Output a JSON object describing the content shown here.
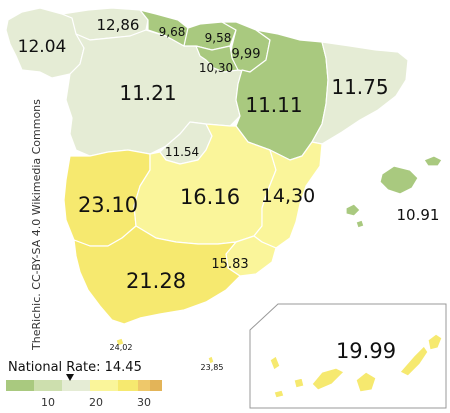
{
  "colors": {
    "cat_very_low": "#a9c97f",
    "cat_low": "#cddfae",
    "cat_mid_low": "#e5ecd5",
    "cat_mid": "#faf59a",
    "cat_high": "#f6e96f",
    "cat_very_high": "#eec86a",
    "highest": "#e3b458"
  },
  "credit": "TheRichic. CC-BY-SA 4.0 Wikimedia Commons",
  "legend": {
    "title": "National Rate: 14.45",
    "ticks": [
      "10",
      "20",
      "30"
    ],
    "marker_value": 14.45
  },
  "regions": [
    {
      "name": "Galicia",
      "label": "12.04",
      "color": "cat_mid_low"
    },
    {
      "name": "Asturias",
      "label": "12,86",
      "color": "cat_mid_low"
    },
    {
      "name": "Cantabria",
      "label": "9,68",
      "color": "cat_very_low"
    },
    {
      "name": "Pais Vasco",
      "label": "9,58",
      "color": "cat_very_low"
    },
    {
      "name": "Navarra",
      "label": "9,99",
      "color": "cat_very_low"
    },
    {
      "name": "La Rioja",
      "label": "10,30",
      "color": "cat_very_low"
    },
    {
      "name": "Castilla y Leon",
      "label": "11.21",
      "color": "cat_mid_low"
    },
    {
      "name": "Aragon",
      "label": "11.11",
      "color": "cat_very_low"
    },
    {
      "name": "Cataluna",
      "label": "11.75",
      "color": "cat_mid_low"
    },
    {
      "name": "Madrid",
      "label": "11.54",
      "color": "cat_mid_low"
    },
    {
      "name": "Extremadura",
      "label": "23.10",
      "color": "cat_high"
    },
    {
      "name": "Castilla-La Mancha",
      "label": "16.16",
      "color": "cat_mid"
    },
    {
      "name": "Valencia",
      "label": "14,30",
      "color": "cat_mid"
    },
    {
      "name": "Baleares",
      "label": "10.91",
      "color": "cat_very_low"
    },
    {
      "name": "Andalucia",
      "label": "21.28",
      "color": "cat_high"
    },
    {
      "name": "Murcia",
      "label": "15.83",
      "color": "cat_mid"
    },
    {
      "name": "Ceuta",
      "label": "24,02",
      "color": "cat_high"
    },
    {
      "name": "Melilla",
      "label": "23,85",
      "color": "cat_high"
    },
    {
      "name": "Canarias",
      "label": "19.99",
      "color": "cat_high"
    }
  ]
}
